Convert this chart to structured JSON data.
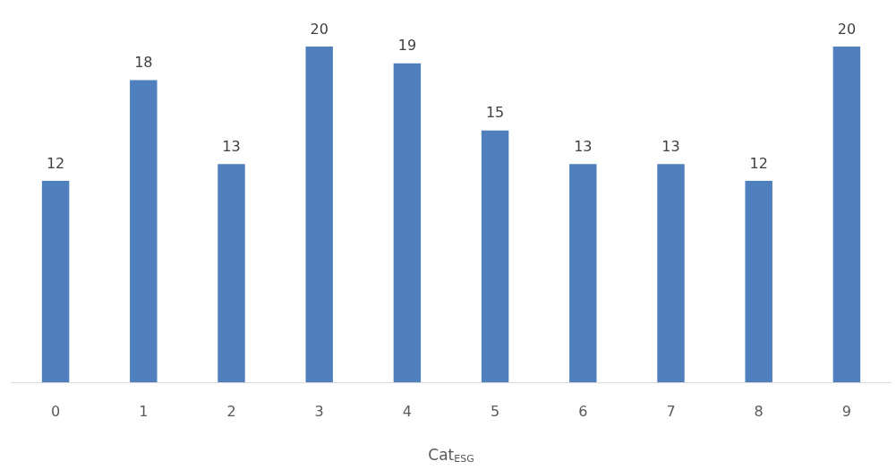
{
  "chart_data": {
    "type": "bar",
    "xlabel": "Cat$_{ESG}$",
    "categories": [
      "0",
      "1",
      "2",
      "3",
      "4",
      "5",
      "6",
      "7",
      "8",
      "9"
    ],
    "values": [
      12,
      18,
      13,
      20,
      19,
      15,
      13,
      13,
      12,
      20
    ],
    "color": "#4f80bd",
    "data_labels": true
  }
}
